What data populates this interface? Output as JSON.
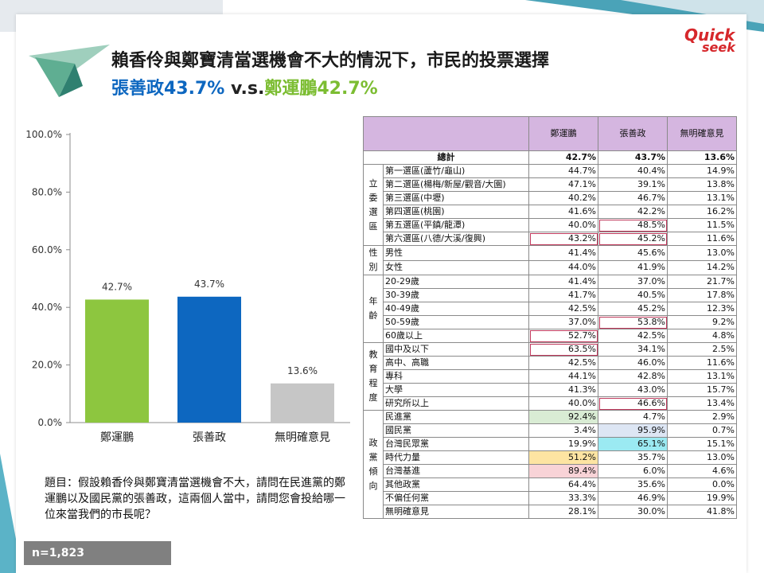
{
  "brand": {
    "logo_line1": "Quick",
    "logo_line2": "seek"
  },
  "title": {
    "line1": "賴香伶與鄭寶清當選機會不大的情況下，市民的投票選擇",
    "line2_a": "張善政43.7%",
    "line2_vs": "v.s.",
    "line2_b": "鄭運鵬42.7%"
  },
  "question": "題目：假設賴香伶與鄭寶清當選機會不大，請問在民進黨的鄭運鵬以及國民黨的張善政，這兩個人當中，請問您會投給哪一位來當我們的市長呢？",
  "sample": "n=1,823",
  "colors": {
    "green": "#8dc63f",
    "blue": "#0d67c0",
    "gray": "#c6c6c6"
  },
  "chart_data": {
    "type": "bar",
    "categories": [
      "鄭運鵬",
      "張善政",
      "無明確意見"
    ],
    "values": [
      42.7,
      43.7,
      13.6
    ],
    "value_labels": [
      "42.7%",
      "43.7%",
      "13.6%"
    ],
    "yticks": [
      "0.0%",
      "20.0%",
      "40.0%",
      "60.0%",
      "80.0%",
      "100.0%"
    ],
    "ylim": [
      0,
      100
    ],
    "grid": false
  },
  "table": {
    "headers": [
      "鄭運鵬",
      "張善政",
      "無明確意見"
    ],
    "total": {
      "label": "總計",
      "values": [
        "42.7%",
        "43.7%",
        "13.6%"
      ]
    },
    "groups": [
      {
        "name": "立委選區",
        "rows": [
          {
            "label": "第一選區(蘆竹/龜山)",
            "values": [
              "44.7%",
              "40.4%",
              "14.9%"
            ]
          },
          {
            "label": "第二選區(楊梅/新屋/觀音/大園)",
            "values": [
              "47.1%",
              "39.1%",
              "13.8%"
            ]
          },
          {
            "label": "第三選區(中壢)",
            "values": [
              "40.2%",
              "46.7%",
              "13.1%"
            ]
          },
          {
            "label": "第四選區(桃園)",
            "values": [
              "41.6%",
              "42.2%",
              "16.2%"
            ]
          },
          {
            "label": "第五選區(平鎮/龍潭)",
            "values": [
              "40.0%",
              "48.5%",
              "11.5%"
            ]
          },
          {
            "label": "第六選區(八德/大溪/復興)",
            "values": [
              "43.2%",
              "45.2%",
              "11.6%"
            ]
          }
        ]
      },
      {
        "name": "性別",
        "rows": [
          {
            "label": "男性",
            "values": [
              "41.4%",
              "45.6%",
              "13.0%"
            ]
          },
          {
            "label": "女性",
            "values": [
              "44.0%",
              "41.9%",
              "14.2%"
            ]
          }
        ]
      },
      {
        "name": "年齡",
        "rows": [
          {
            "label": "20-29歲",
            "values": [
              "41.4%",
              "37.0%",
              "21.7%"
            ]
          },
          {
            "label": "30-39歲",
            "values": [
              "41.7%",
              "40.5%",
              "17.8%"
            ]
          },
          {
            "label": "40-49歲",
            "values": [
              "42.5%",
              "45.2%",
              "12.3%"
            ]
          },
          {
            "label": "50-59歲",
            "values": [
              "37.0%",
              "53.8%",
              "9.2%"
            ]
          },
          {
            "label": "60歲以上",
            "values": [
              "52.7%",
              "42.5%",
              "4.8%"
            ]
          }
        ]
      },
      {
        "name": "教育程度",
        "rows": [
          {
            "label": "國中及以下",
            "values": [
              "63.5%",
              "34.1%",
              "2.5%"
            ]
          },
          {
            "label": "高中、高職",
            "values": [
              "42.5%",
              "46.0%",
              "11.6%"
            ]
          },
          {
            "label": "專科",
            "values": [
              "44.1%",
              "42.8%",
              "13.1%"
            ]
          },
          {
            "label": "大學",
            "values": [
              "41.3%",
              "43.0%",
              "15.7%"
            ]
          },
          {
            "label": "研究所以上",
            "values": [
              "40.0%",
              "46.6%",
              "13.4%"
            ]
          }
        ]
      },
      {
        "name": "政黨傾向",
        "rows": [
          {
            "label": "民進黨",
            "values": [
              "92.4%",
              "4.7%",
              "2.9%"
            ]
          },
          {
            "label": "國民黨",
            "values": [
              "3.4%",
              "95.9%",
              "0.7%"
            ]
          },
          {
            "label": "台灣民眾黨",
            "values": [
              "19.9%",
              "65.1%",
              "15.1%"
            ]
          },
          {
            "label": "時代力量",
            "values": [
              "51.2%",
              "35.7%",
              "13.0%"
            ]
          },
          {
            "label": "台灣基進",
            "values": [
              "89.4%",
              "6.0%",
              "4.6%"
            ]
          },
          {
            "label": "其他政黨",
            "values": [
              "64.4%",
              "35.6%",
              "0.0%"
            ]
          },
          {
            "label": "不偏任何黨",
            "values": [
              "33.3%",
              "46.9%",
              "19.9%"
            ]
          },
          {
            "label": "無明確意見",
            "values": [
              "28.1%",
              "30.0%",
              "41.8%"
            ]
          }
        ]
      }
    ]
  }
}
